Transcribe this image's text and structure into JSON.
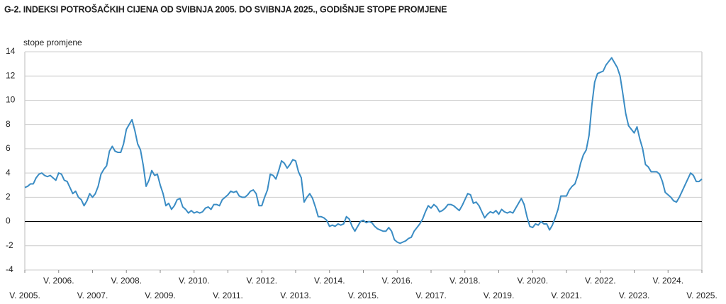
{
  "chart_data": {
    "type": "line",
    "title": "G-2.  INDEKSI POTROŠAČKIH CIJENA OD SVIBNJA 2005. DO SVIBNJA 2025., GODIŠNJE STOPE PROMJENE",
    "y_label": "stope promjene",
    "categories": [
      "V. 2005.",
      null,
      null,
      null,
      null,
      null,
      null,
      null,
      null,
      null,
      null,
      null,
      "V. 2006.",
      null,
      null,
      null,
      null,
      null,
      null,
      null,
      null,
      null,
      null,
      null,
      "V. 2007.",
      null,
      null,
      null,
      null,
      null,
      null,
      null,
      null,
      null,
      null,
      null,
      "V. 2008.",
      null,
      null,
      null,
      null,
      null,
      null,
      null,
      null,
      null,
      null,
      null,
      "V. 2009.",
      null,
      null,
      null,
      null,
      null,
      null,
      null,
      null,
      null,
      null,
      null,
      "V. 2010.",
      null,
      null,
      null,
      null,
      null,
      null,
      null,
      null,
      null,
      null,
      null,
      "V. 2011.",
      null,
      null,
      null,
      null,
      null,
      null,
      null,
      null,
      null,
      null,
      null,
      "V. 2012.",
      null,
      null,
      null,
      null,
      null,
      null,
      null,
      null,
      null,
      null,
      null,
      "V. 2013.",
      null,
      null,
      null,
      null,
      null,
      null,
      null,
      null,
      null,
      null,
      null,
      "V. 2014.",
      null,
      null,
      null,
      null,
      null,
      null,
      null,
      null,
      null,
      null,
      null,
      "V. 2015.",
      null,
      null,
      null,
      null,
      null,
      null,
      null,
      null,
      null,
      null,
      null,
      "V. 2016.",
      null,
      null,
      null,
      null,
      null,
      null,
      null,
      null,
      null,
      null,
      null,
      "V. 2017.",
      null,
      null,
      null,
      null,
      null,
      null,
      null,
      null,
      null,
      null,
      null,
      "V. 2018.",
      null,
      null,
      null,
      null,
      null,
      null,
      null,
      null,
      null,
      null,
      null,
      "V. 2019.",
      null,
      null,
      null,
      null,
      null,
      null,
      null,
      null,
      null,
      null,
      null,
      "V. 2020.",
      null,
      null,
      null,
      null,
      null,
      null,
      null,
      null,
      null,
      null,
      null,
      "V. 2021.",
      null,
      null,
      null,
      null,
      null,
      null,
      null,
      null,
      null,
      null,
      null,
      "V. 2022.",
      null,
      null,
      null,
      null,
      null,
      null,
      null,
      null,
      null,
      null,
      null,
      "V. 2023.",
      null,
      null,
      null,
      null,
      null,
      null,
      null,
      null,
      null,
      null,
      null,
      "V. 2024.",
      null,
      null,
      null,
      null,
      null,
      null,
      null,
      null,
      null,
      null,
      null,
      "V. 2025."
    ],
    "values": [
      2.8,
      2.9,
      3.1,
      3.1,
      3.6,
      3.9,
      4.0,
      3.8,
      3.7,
      3.8,
      3.6,
      3.4,
      4.0,
      3.9,
      3.4,
      3.3,
      2.8,
      2.3,
      2.5,
      2.0,
      1.8,
      1.3,
      1.7,
      2.3,
      2.0,
      2.3,
      2.9,
      3.9,
      4.3,
      4.6,
      5.8,
      6.2,
      5.8,
      5.7,
      5.7,
      6.4,
      7.6,
      8.0,
      8.4,
      7.5,
      6.4,
      5.9,
      4.6,
      2.9,
      3.4,
      4.2,
      3.8,
      3.9,
      3.0,
      2.3,
      1.3,
      1.5,
      1.0,
      1.3,
      1.8,
      1.9,
      1.2,
      1.0,
      0.7,
      0.9,
      0.7,
      0.8,
      0.7,
      0.8,
      1.1,
      1.2,
      1.0,
      1.4,
      1.4,
      1.3,
      1.8,
      2.0,
      2.2,
      2.5,
      2.4,
      2.5,
      2.1,
      2.0,
      2.0,
      2.2,
      2.5,
      2.6,
      2.3,
      1.3,
      1.3,
      2.0,
      2.6,
      3.9,
      3.8,
      3.5,
      4.2,
      5.0,
      4.8,
      4.4,
      4.7,
      5.1,
      5.0,
      4.1,
      3.6,
      1.6,
      2.0,
      2.3,
      1.9,
      1.2,
      0.4,
      0.4,
      0.3,
      0.1,
      -0.4,
      -0.3,
      -0.4,
      -0.2,
      -0.3,
      -0.2,
      0.4,
      0.2,
      -0.4,
      -0.8,
      -0.4,
      0.0,
      0.1,
      -0.1,
      0.0,
      -0.1,
      -0.4,
      -0.6,
      -0.7,
      -0.8,
      -0.8,
      -0.5,
      -0.8,
      -1.5,
      -1.7,
      -1.8,
      -1.7,
      -1.6,
      -1.4,
      -1.3,
      -0.8,
      -0.5,
      -0.2,
      0.2,
      0.8,
      1.3,
      1.1,
      1.4,
      1.2,
      0.8,
      0.9,
      1.1,
      1.4,
      1.4,
      1.3,
      1.1,
      0.9,
      1.3,
      1.8,
      2.3,
      2.2,
      1.5,
      1.6,
      1.3,
      0.8,
      0.3,
      0.6,
      0.8,
      0.7,
      0.9,
      0.6,
      1.0,
      0.8,
      0.7,
      0.8,
      0.7,
      1.1,
      1.5,
      1.9,
      1.4,
      0.4,
      -0.4,
      -0.5,
      -0.2,
      -0.3,
      0.0,
      -0.2,
      -0.2,
      -0.7,
      -0.3,
      0.3,
      1.0,
      2.1,
      2.1,
      2.1,
      2.6,
      2.9,
      3.1,
      3.8,
      4.8,
      5.5,
      5.9,
      7.1,
      9.6,
      11.5,
      12.2,
      12.3,
      12.4,
      12.9,
      13.2,
      13.5,
      13.1,
      12.7,
      12.0,
      10.5,
      8.9,
      7.9,
      7.6,
      7.3,
      7.8,
      6.8,
      6.0,
      4.7,
      4.5,
      4.1,
      4.1,
      4.1,
      3.9,
      3.3,
      2.4,
      2.2,
      2.0,
      1.7,
      1.6,
      2.0,
      2.5,
      3.0,
      3.5,
      4.0,
      3.8,
      3.3,
      3.3,
      3.5
    ],
    "color": "#3a8cc4",
    "ylim": [
      -4,
      14
    ],
    "yticks": [
      -4,
      -2,
      0,
      2,
      4,
      6,
      8,
      10,
      12,
      14
    ],
    "grid": true
  }
}
